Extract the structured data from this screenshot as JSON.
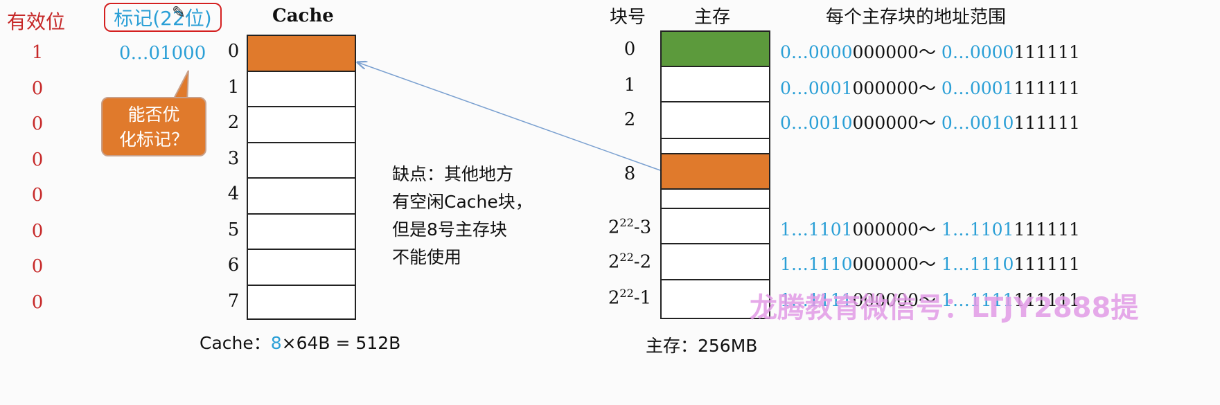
{
  "valid_bits": {
    "header": "有效位",
    "values": [
      "1",
      "0",
      "0",
      "0",
      "0",
      "0",
      "0",
      "0"
    ]
  },
  "tag": {
    "header": "标记(22位)",
    "first_value": "0…01000",
    "bubble_text_line1": "能否优",
    "bubble_text_line2": "化标记？"
  },
  "cache": {
    "title": "Cache",
    "rows": [
      "0",
      "1",
      "2",
      "3",
      "4",
      "5",
      "6",
      "7"
    ],
    "size_prefix": "Cache：",
    "size_count": "8",
    "size_rest": "×64B = 512B"
  },
  "note": {
    "line1": "缺点：其他地方",
    "line2": "有空闲Cache块，",
    "line3": "但是8号主存块",
    "line4": "不能使用"
  },
  "memory": {
    "col_block_no": "块号",
    "col_main": "主存",
    "col_range": "每个主存块的地址范围",
    "blocks": [
      {
        "idx": "0",
        "addr_hi": "0…0000",
        "addr_lo_start": "000000",
        "sep": "～ ",
        "addr_hi2": "0…0000",
        "addr_lo_end": "111111"
      },
      {
        "idx": "1",
        "addr_hi": "0…0001",
        "addr_lo_start": "000000",
        "sep": "～ ",
        "addr_hi2": "0…0001",
        "addr_lo_end": "111111"
      },
      {
        "idx": "2",
        "addr_hi": "0…0010",
        "addr_lo_start": "000000",
        "sep": "～ ",
        "addr_hi2": "0…0010",
        "addr_lo_end": "111111"
      },
      {
        "idx": "8"
      },
      {
        "idx_base": "2",
        "idx_exp": "22",
        "idx_sub": "-3",
        "addr_hi": "1…1101",
        "addr_lo_start": "000000",
        "sep": "～ ",
        "addr_hi2": "1…1101",
        "addr_lo_end": "111111"
      },
      {
        "idx_base": "2",
        "idx_exp": "22",
        "idx_sub": "-2",
        "addr_hi": "1…1110",
        "addr_lo_start": "000000",
        "sep": "～ ",
        "addr_hi2": "1…1110",
        "addr_lo_end": "111111"
      },
      {
        "idx_base": "2",
        "idx_exp": "22",
        "idx_sub": "-1",
        "addr_hi": "1…1111",
        "addr_lo_start": "000000",
        "sep": "～ ",
        "addr_hi2": "1…1111",
        "addr_lo_end": "111111"
      }
    ],
    "size_label": "主存：256MB"
  },
  "watermark": "龙腾教育微信号：LTJY2888提",
  "colors": {
    "orange": "#e07a2c",
    "green": "#5c9a3c",
    "blue": "#2a9fd6",
    "red": "#c62828"
  }
}
